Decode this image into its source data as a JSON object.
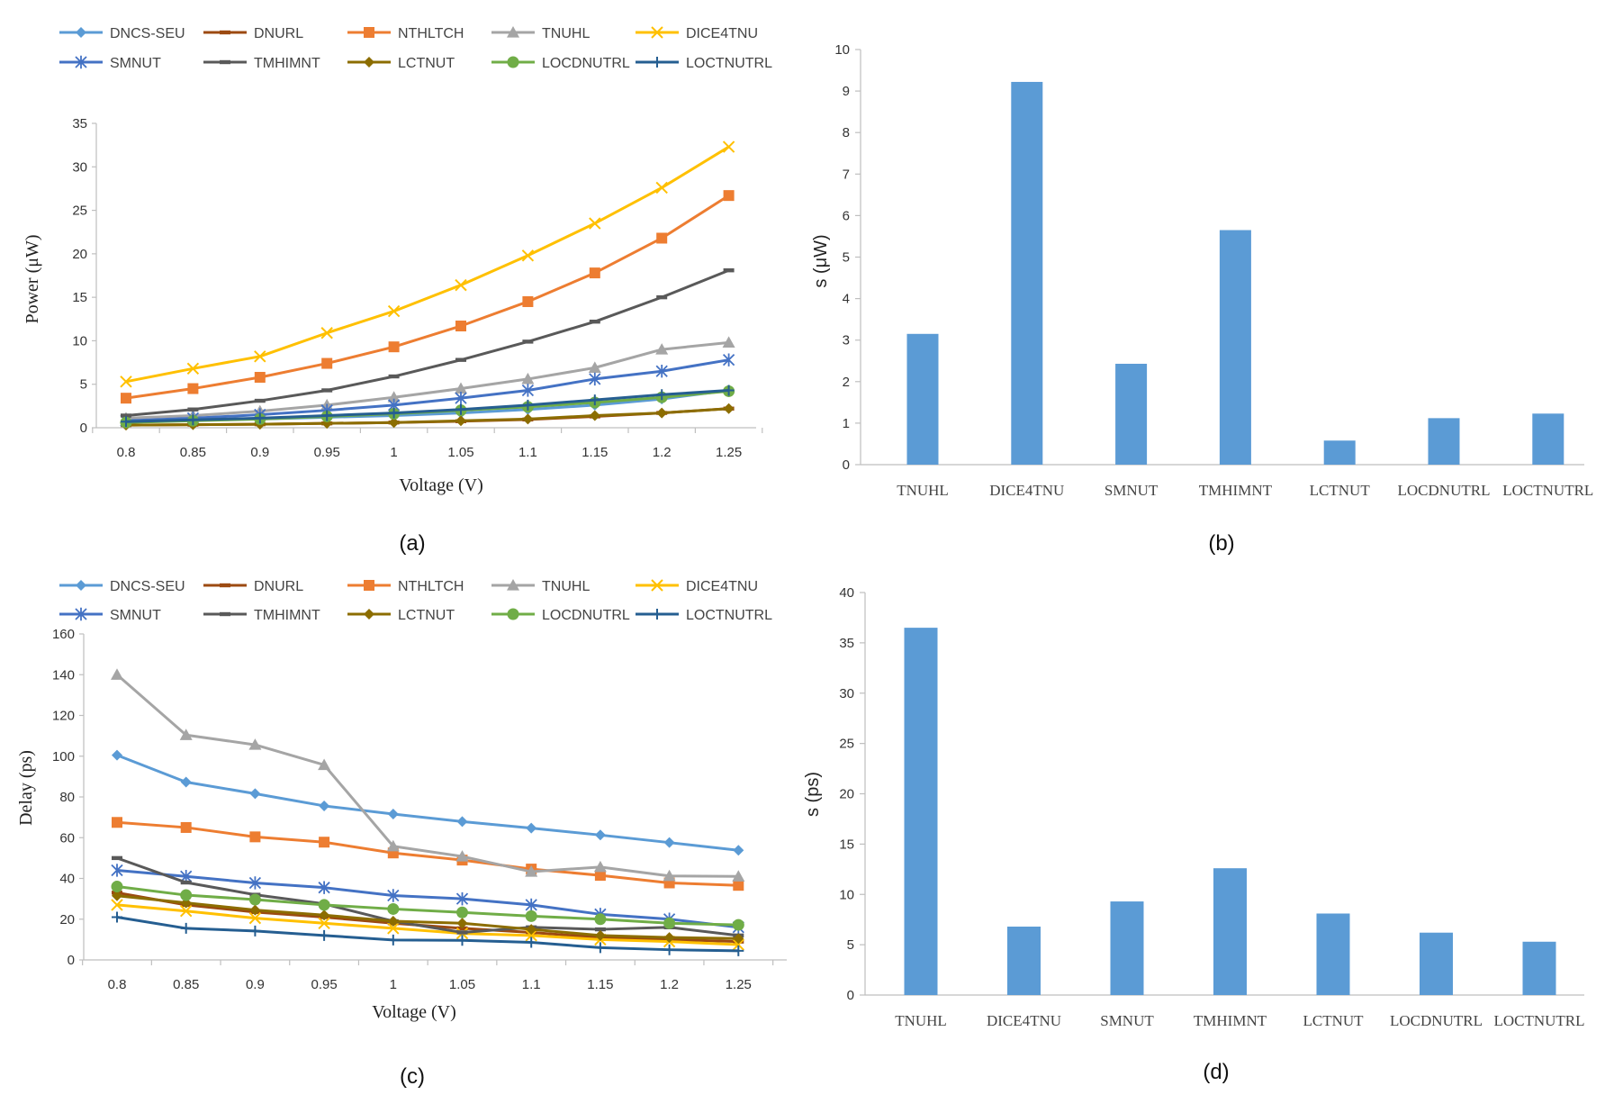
{
  "colors": {
    "DNCS-SEU": "#5b9bd5",
    "DNURL": "#9c4a11",
    "NTHLTCH": "#ed7d31",
    "TNUHL": "#a5a5a5",
    "DICE4TNU": "#ffc000",
    "SMNUT": "#4472c4",
    "TMHIMNT": "#595959",
    "LCTNUT": "#8c6d00",
    "LOCDNUTRL": "#70ad47",
    "LOCTNUTRL": "#255e91",
    "bar": "#5b9bd5",
    "axis": "#bfbfbf"
  },
  "chart_data": [
    {
      "panel": "(a)",
      "type": "line",
      "xlabel": "Voltage (V)",
      "ylabel": "Power (μW)",
      "ylim": [
        0,
        35
      ],
      "yticks": [
        "0",
        "5",
        "10",
        "15",
        "20",
        "25",
        "30",
        "35"
      ],
      "categories": [
        "0.8",
        "0.85",
        "0.9",
        "0.95",
        "1",
        "1.05",
        "1.1",
        "1.15",
        "1.2",
        "1.25"
      ],
      "series": [
        {
          "name": "DNCS-SEU",
          "marker": "diamond",
          "values": [
            0.8,
            0.9,
            1.0,
            1.2,
            1.4,
            1.7,
            2.1,
            2.6,
            3.3,
            4.3
          ]
        },
        {
          "name": "DNURL",
          "marker": "dash",
          "values": [
            0.3,
            0.35,
            0.4,
            0.5,
            0.6,
            0.75,
            0.95,
            1.3,
            1.7,
            2.2
          ]
        },
        {
          "name": "NTHLTCH",
          "marker": "square",
          "values": [
            3.4,
            4.5,
            5.8,
            7.4,
            9.3,
            11.7,
            14.5,
            17.8,
            21.8,
            26.7
          ]
        },
        {
          "name": "TNUHL",
          "marker": "triangle",
          "values": [
            1.1,
            1.4,
            1.9,
            2.6,
            3.5,
            4.5,
            5.6,
            6.9,
            9.0,
            9.8
          ]
        },
        {
          "name": "DICE4TNU",
          "marker": "x",
          "values": [
            5.3,
            6.8,
            8.2,
            10.9,
            13.4,
            16.4,
            19.8,
            23.5,
            27.6,
            32.3
          ]
        },
        {
          "name": "SMNUT",
          "marker": "star",
          "values": [
            0.8,
            1.1,
            1.5,
            2.0,
            2.6,
            3.4,
            4.3,
            5.6,
            6.5,
            7.8
          ]
        },
        {
          "name": "TMHIMNT",
          "marker": "dash",
          "values": [
            1.4,
            2.1,
            3.1,
            4.3,
            5.9,
            7.8,
            9.9,
            12.2,
            15.0,
            18.1
          ]
        },
        {
          "name": "LCTNUT",
          "marker": "diamond",
          "values": [
            0.3,
            0.35,
            0.4,
            0.5,
            0.6,
            0.8,
            1.0,
            1.4,
            1.7,
            2.2
          ]
        },
        {
          "name": "LOCDNUTRL",
          "marker": "circle",
          "values": [
            0.6,
            0.8,
            1.0,
            1.3,
            1.6,
            2.0,
            2.4,
            2.9,
            3.5,
            4.2
          ]
        },
        {
          "name": "LOCTNUTRL",
          "marker": "plus",
          "values": [
            0.7,
            0.9,
            1.1,
            1.4,
            1.7,
            2.1,
            2.6,
            3.2,
            3.8,
            4.3
          ]
        }
      ]
    },
    {
      "panel": "(b)",
      "type": "bar",
      "ylabel": "s (μW)",
      "ylim": [
        0,
        10
      ],
      "yticks": [
        "0",
        "1",
        "2",
        "3",
        "4",
        "5",
        "6",
        "7",
        "8",
        "9",
        "10"
      ],
      "categories": [
        "TNUHL",
        "DICE4TNU",
        "SMNUT",
        "TMHIMNT",
        "LCTNUT",
        "LOCDNUTRL",
        "LOCTNUTRL"
      ],
      "values": [
        3.15,
        9.22,
        2.43,
        5.65,
        0.58,
        1.12,
        1.23
      ]
    },
    {
      "panel": "(c)",
      "type": "line",
      "xlabel": "Voltage (V)",
      "ylabel": "Delay (ps)",
      "ylim": [
        0,
        160
      ],
      "yticks": [
        "0",
        "20",
        "40",
        "60",
        "80",
        "100",
        "120",
        "140",
        "160"
      ],
      "categories": [
        "0.8",
        "0.85",
        "0.9",
        "0.95",
        "1",
        "1.05",
        "1.1",
        "1.15",
        "1.2",
        "1.25"
      ],
      "series": [
        {
          "name": "DNCS-SEU",
          "marker": "diamond",
          "values": [
            100.5,
            87.3,
            81.6,
            75.6,
            71.6,
            67.9,
            64.7,
            61.3,
            57.6,
            53.8
          ]
        },
        {
          "name": "DNURL",
          "marker": "dash",
          "values": [
            33.0,
            27.0,
            23.5,
            21.0,
            18.0,
            15.5,
            13.5,
            11.0,
            10.0,
            9.0
          ]
        },
        {
          "name": "NTHLTCH",
          "marker": "square",
          "values": [
            67.5,
            65.0,
            60.4,
            57.8,
            52.5,
            49.0,
            44.6,
            41.5,
            37.8,
            36.6
          ]
        },
        {
          "name": "TNUHL",
          "marker": "triangle",
          "values": [
            140.0,
            110.4,
            105.6,
            95.7,
            55.8,
            50.8,
            43.3,
            45.6,
            41.2,
            41.0
          ]
        },
        {
          "name": "DICE4TNU",
          "marker": "x",
          "values": [
            27.0,
            24.0,
            20.5,
            18.0,
            15.5,
            13.0,
            12.0,
            10.0,
            9.0,
            7.5
          ]
        },
        {
          "name": "SMNUT",
          "marker": "star",
          "values": [
            44.0,
            41.0,
            37.8,
            35.5,
            31.6,
            30.0,
            27.0,
            22.4,
            20.0,
            16.0
          ]
        },
        {
          "name": "TMHIMNT",
          "marker": "dash",
          "values": [
            50.0,
            38.0,
            32.0,
            27.5,
            19.0,
            13.5,
            16.0,
            15.0,
            16.0,
            12.0
          ]
        },
        {
          "name": "LCTNUT",
          "marker": "diamond",
          "values": [
            31.5,
            28.0,
            24.5,
            22.0,
            19.0,
            18.0,
            15.0,
            12.0,
            11.0,
            10.5
          ]
        },
        {
          "name": "LOCDNUTRL",
          "marker": "circle",
          "values": [
            36.0,
            31.8,
            29.6,
            27.0,
            25.0,
            23.3,
            21.5,
            20.0,
            18.0,
            17.2
          ]
        },
        {
          "name": "LOCTNUTRL",
          "marker": "plus",
          "values": [
            21.0,
            15.5,
            14.2,
            12.0,
            9.8,
            9.6,
            8.6,
            6.0,
            5.0,
            4.5
          ]
        }
      ]
    },
    {
      "panel": "(d)",
      "type": "bar",
      "ylabel": "s (ps)",
      "ylim": [
        0,
        40
      ],
      "yticks": [
        "0",
        "5",
        "10",
        "15",
        "20",
        "25",
        "30",
        "35",
        "40"
      ],
      "categories": [
        "TNUHL",
        "DICE4TNU",
        "SMNUT",
        "TMHIMNT",
        "LCTNUT",
        "LOCDNUTRL",
        "LOCTNUTRL"
      ],
      "values": [
        36.5,
        6.8,
        9.3,
        12.6,
        8.1,
        6.2,
        5.3
      ]
    }
  ]
}
